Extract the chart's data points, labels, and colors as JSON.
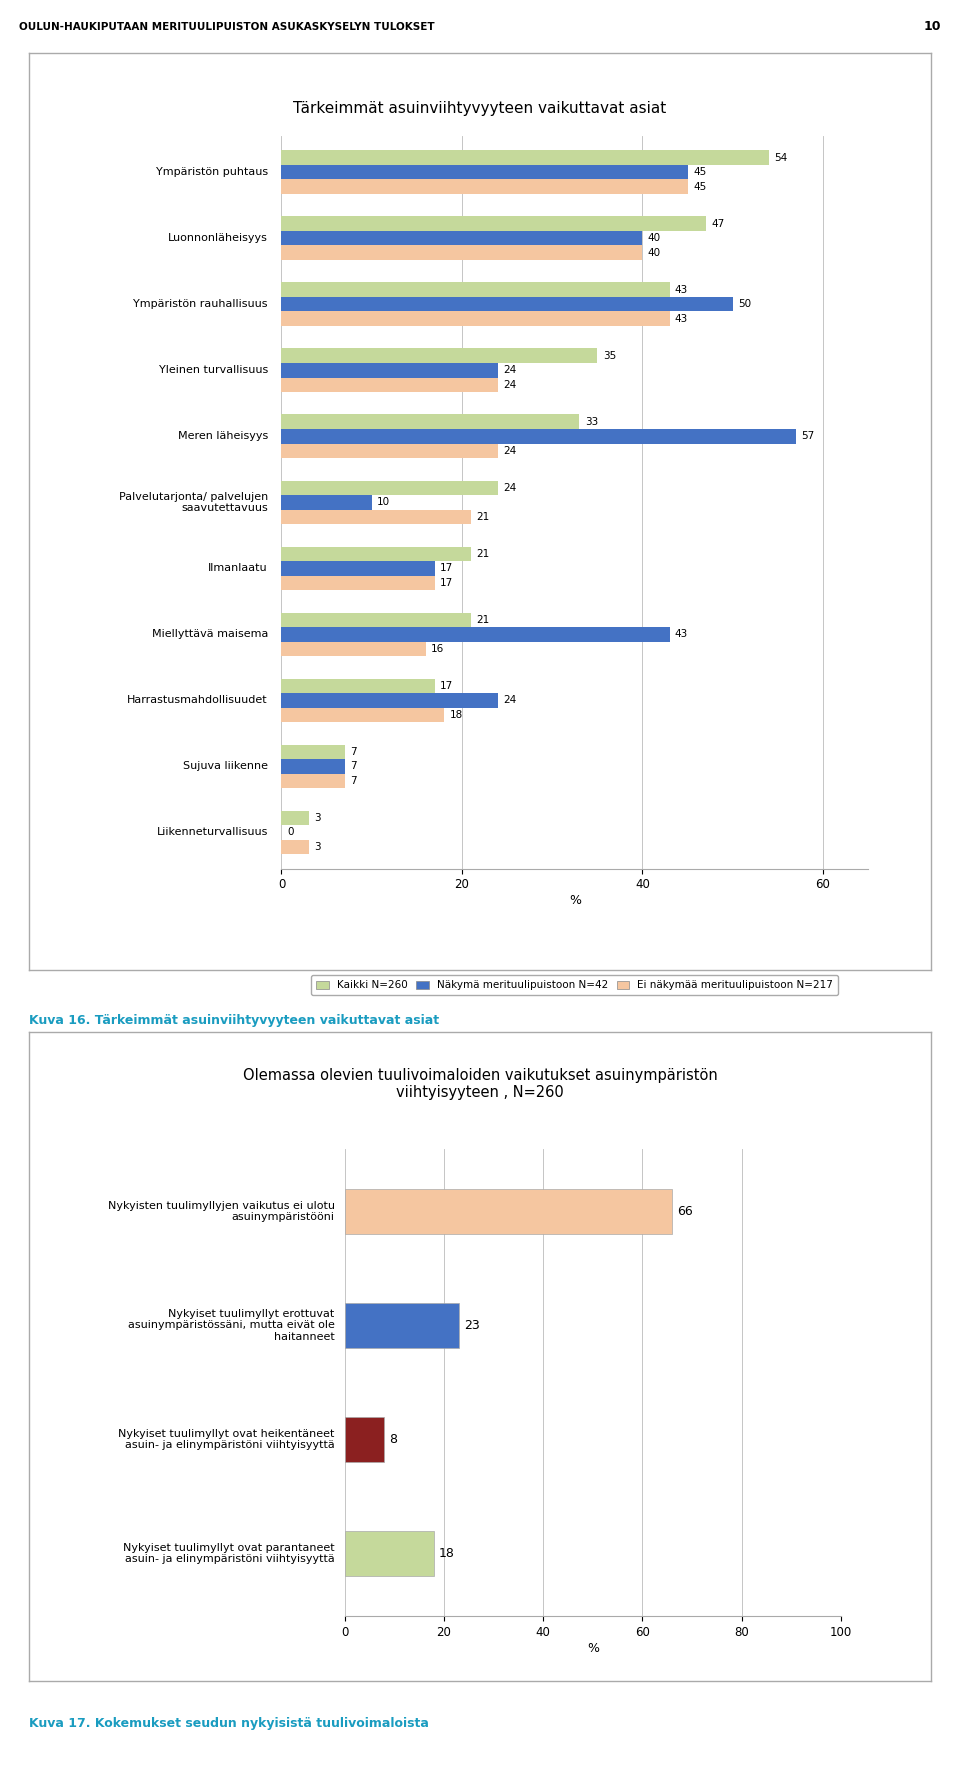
{
  "page_header": "OULUN-HAUKIPUTAAN MERITUULIPUISTON ASUKASKYSELYN TULOKSET",
  "page_number": "10",
  "chart1": {
    "title": "Tärkeimmät asuinviihtyvyyteen vaikuttavat asiat",
    "categories": [
      "Ympäristön puhtaus",
      "Luonnonläheisyys",
      "Ympäristön rauhallisuus",
      "Yleinen turvallisuus",
      "Meren läheisyys",
      "Palvelutarjonta/ palvelujen\nsaavutettavuus",
      "Ilmanlaatu",
      "Miellyttävä maisema",
      "Harrastusmahdollisuudet",
      "Sujuva liikenne",
      "Liikenneturvallisuus"
    ],
    "series_kaikki": [
      54,
      47,
      43,
      35,
      33,
      24,
      21,
      21,
      17,
      7,
      3
    ],
    "series_nakyma": [
      45,
      40,
      50,
      24,
      57,
      10,
      17,
      43,
      24,
      7,
      0
    ],
    "series_ei": [
      45,
      40,
      43,
      24,
      24,
      21,
      17,
      16,
      18,
      7,
      3
    ],
    "color_kaikki": "#c5d99b",
    "color_nakyma": "#4472c4",
    "color_ei": "#f5c6a0",
    "xlim": [
      0,
      65
    ],
    "xlabel": "%",
    "xticks": [
      0,
      20,
      40,
      60
    ],
    "xtick_labels": [
      "0",
      "20",
      "40",
      "60"
    ],
    "legend_labels": [
      "Kaikki N=260",
      "Näkymä merituulipuistoon N=42",
      "Ei näkymää merituulipuistoon N=217"
    ]
  },
  "caption1": "Kuva 16. Tärkeimmät asuinviihtyvyyteen vaikuttavat asiat",
  "chart2": {
    "title": "Olemassa olevien tuulivoimaloiden vaikutukset asuinympäristön\nviihtyisyyteen , N=260",
    "categories": [
      "Nykyisten tuulimyllyjen vaikutus ei ulotu\nasuinympäristööni",
      "Nykyiset tuulimyllyt erottuvat\nasuinympäristössäni, mutta eivät ole\nhaitanneet",
      "Nykyiset tuulimyllyt ovat heikentäneet\nasuin- ja elinympäristöni viihtyisyyttä",
      "Nykyiset tuulimyllyt ovat parantaneet\nasuin- ja elinympäristöni viihtyisyyttä"
    ],
    "values": [
      66,
      23,
      8,
      18
    ],
    "colors": [
      "#f5c6a0",
      "#4472c4",
      "#8b2020",
      "#c5d99b"
    ],
    "xlim": [
      0,
      100
    ],
    "xticks": [
      0,
      20,
      40,
      60,
      80,
      100
    ],
    "xlabel": "%"
  },
  "caption2": "Kuva 17. Kokemukset seudun nykyisistä tuulivoimaloista"
}
